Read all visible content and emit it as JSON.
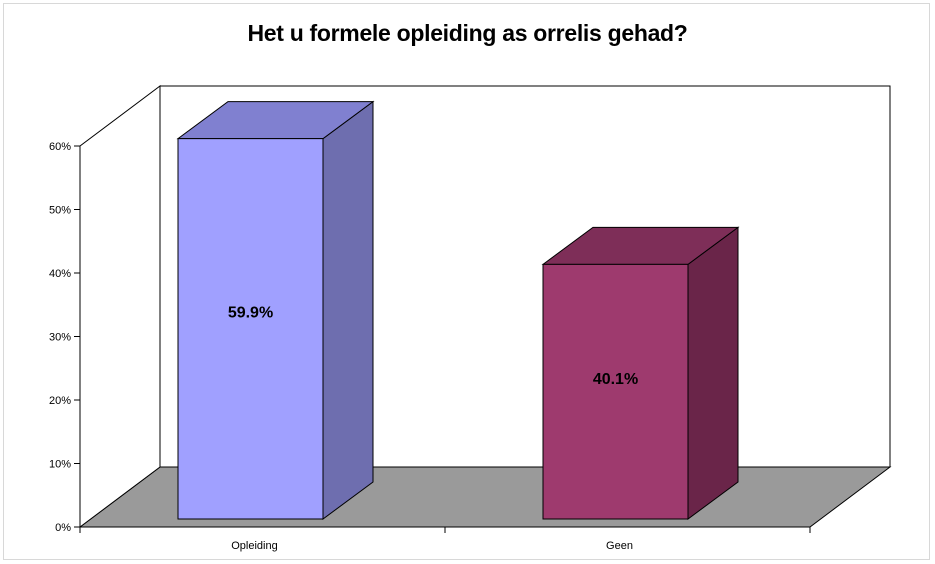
{
  "chart_data": {
    "type": "bar",
    "title": "Het u formele opleiding as orrelis gehad?",
    "categories": [
      "Opleiding",
      "Geen"
    ],
    "values": [
      59.9,
      40.1
    ],
    "value_labels": [
      "59.9%",
      "40.1%"
    ],
    "ylim": [
      0,
      60
    ],
    "yticks": [
      "0%",
      "10%",
      "20%",
      "30%",
      "40%",
      "50%",
      "60%"
    ],
    "xlabel": "",
    "ylabel": "",
    "grid": false,
    "legend": "none",
    "three_d": true,
    "colors": {
      "Opleiding": {
        "front": "#a0a0ff",
        "top": "#8080d0",
        "side": "#6e6eaf"
      },
      "Geen": {
        "front": "#9e3a6e",
        "top": "#7e2e58",
        "side": "#6a2549"
      },
      "floor": "#9a9a9a",
      "walls": "#ffffff",
      "lines": "#000000"
    }
  }
}
